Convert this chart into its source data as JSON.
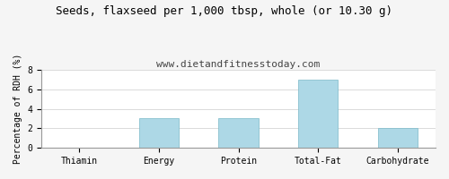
{
  "title": "Seeds, flaxseed per 1,000 tbsp, whole (or 10.30 g)",
  "subtitle": "www.dietandfitnesstoday.com",
  "categories": [
    "Thiamin",
    "Energy",
    "Protein",
    "Total-Fat",
    "Carbohydrate"
  ],
  "values": [
    0,
    3,
    3,
    7,
    2
  ],
  "bar_color": "#add8e6",
  "bar_edge_color": "#7ab8c8",
  "ylabel": "Percentage of RDH (%)",
  "ylim": [
    0,
    8
  ],
  "yticks": [
    0,
    2,
    4,
    6,
    8
  ],
  "background_color": "#f5f5f5",
  "plot_bg_color": "#ffffff",
  "title_fontsize": 9,
  "subtitle_fontsize": 8,
  "axis_label_fontsize": 7,
  "tick_fontsize": 7
}
